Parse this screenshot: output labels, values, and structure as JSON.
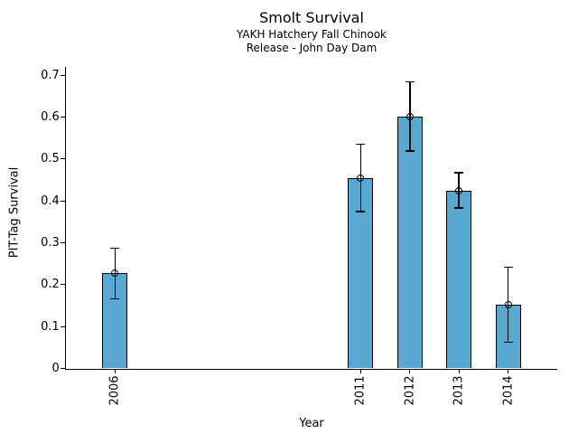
{
  "chart_data": {
    "type": "bar",
    "title": "Smolt Survival",
    "subtitle": [
      "YAKH Hatchery Fall Chinook",
      "Release - John Day Dam"
    ],
    "xlabel": "Year",
    "ylabel": "PIT-Tag Survival",
    "categories": [
      "2006",
      "2011",
      "2012",
      "2013",
      "2014"
    ],
    "x": [
      2006,
      2011,
      2012,
      2013,
      2014
    ],
    "values": [
      0.227,
      0.455,
      0.601,
      0.424,
      0.152
    ],
    "error_low": [
      0.166,
      0.375,
      0.519,
      0.383,
      0.063
    ],
    "error_high": [
      0.287,
      0.535,
      0.684,
      0.468,
      0.242
    ],
    "yticks": [
      0,
      0.1,
      0.2,
      0.3,
      0.4,
      0.5,
      0.6,
      0.7
    ],
    "ytick_labels": [
      "0",
      "0.1",
      "0.2",
      "0.3",
      "0.4",
      "0.5",
      "0.6",
      "0.7"
    ],
    "xlim": [
      2005,
      2015
    ],
    "ylim": [
      0,
      0.72
    ],
    "bar_color": "#58A8D2",
    "bar_edge_color": "#000000",
    "error_color": "#000000",
    "marker": "open-circle",
    "grid": false,
    "legend": false
  }
}
